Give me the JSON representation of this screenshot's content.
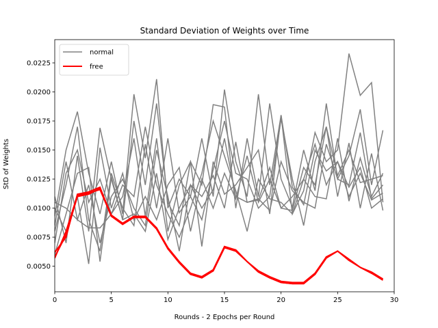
{
  "chart_data": {
    "type": "line",
    "title": "Standard Deviation of Weights over Time",
    "xlabel": "Rounds - 2 Epochs per Round",
    "ylabel": "StD of Weights",
    "xlim": [
      0,
      30
    ],
    "ylim": [
      0.0028,
      0.0245
    ],
    "xticks": [
      0,
      5,
      10,
      15,
      20,
      25,
      30
    ],
    "yticks": [
      0.005,
      0.0075,
      0.01,
      0.0125,
      0.015,
      0.0175,
      0.02,
      0.0225
    ],
    "ytick_labels": [
      "0.0050",
      "0.0075",
      "0.0100",
      "0.0125",
      "0.0150",
      "0.0175",
      "0.0200",
      "0.0225"
    ],
    "grid": false,
    "legend": {
      "position": "top-left",
      "entries": [
        {
          "label": "normal",
          "color": "#808080"
        },
        {
          "label": "free",
          "color": "#ff0000"
        }
      ]
    },
    "x": [
      0,
      1,
      2,
      3,
      4,
      5,
      6,
      7,
      8,
      9,
      10,
      11,
      12,
      13,
      14,
      15,
      16,
      17,
      18,
      19,
      20,
      21,
      22,
      23,
      24,
      25,
      26,
      27,
      28,
      29
    ],
    "series": [
      {
        "group": "normal",
        "color": "#808080",
        "values": [
          0.0093,
          0.015,
          0.0183,
          0.013,
          0.0095,
          0.014,
          0.0095,
          0.0198,
          0.0143,
          0.0211,
          0.01,
          0.0125,
          0.011,
          0.016,
          0.011,
          0.0202,
          0.014,
          0.011,
          0.0198,
          0.012,
          0.018,
          0.0095,
          0.0115,
          0.0165,
          0.014,
          0.015,
          0.0233,
          0.0197,
          0.0208,
          0.0105
        ]
      },
      {
        "group": "normal",
        "color": "#808080",
        "values": [
          0.011,
          0.007,
          0.0145,
          0.008,
          0.0169,
          0.0125,
          0.009,
          0.0175,
          0.012,
          0.019,
          0.0105,
          0.0085,
          0.014,
          0.012,
          0.0189,
          0.0187,
          0.01,
          0.016,
          0.011,
          0.019,
          0.0125,
          0.0101,
          0.015,
          0.0115,
          0.019,
          0.0125,
          0.0145,
          0.0185,
          0.012,
          0.0167
        ]
      },
      {
        "group": "normal",
        "color": "#808080",
        "values": [
          0.008,
          0.012,
          0.017,
          0.009,
          0.0063,
          0.013,
          0.01,
          0.0085,
          0.0155,
          0.01,
          0.016,
          0.0096,
          0.011,
          0.009,
          0.0133,
          0.0175,
          0.013,
          0.0125,
          0.01,
          0.011,
          0.0177,
          0.0125,
          0.0085,
          0.014,
          0.017,
          0.011,
          0.0156,
          0.01,
          0.0147,
          0.0098
        ]
      },
      {
        "group": "normal",
        "color": "#808080",
        "values": [
          0.0085,
          0.014,
          0.009,
          0.012,
          0.007,
          0.011,
          0.0125,
          0.01,
          0.0085,
          0.015,
          0.011,
          0.0063,
          0.012,
          0.01,
          0.0116,
          0.016,
          0.011,
          0.0105,
          0.0108,
          0.0098,
          0.014,
          0.0115,
          0.0105,
          0.01,
          0.0155,
          0.0125,
          0.012,
          0.0165,
          0.0108,
          0.012
        ]
      },
      {
        "group": "normal",
        "color": "#808080",
        "values": [
          0.007,
          0.013,
          0.015,
          0.0105,
          0.0125,
          0.0095,
          0.012,
          0.011,
          0.017,
          0.012,
          0.0095,
          0.0075,
          0.01,
          0.013,
          0.0175,
          0.0145,
          0.0115,
          0.008,
          0.0125,
          0.0108,
          0.0105,
          0.0095,
          0.0125,
          0.011,
          0.0108,
          0.016,
          0.0106,
          0.0143,
          0.011,
          0.013
        ]
      },
      {
        "group": "normal",
        "color": "#808080",
        "values": [
          0.01,
          0.008,
          0.011,
          0.0052,
          0.0152,
          0.01,
          0.013,
          0.009,
          0.011,
          0.009,
          0.012,
          0.0135,
          0.008,
          0.0125,
          0.01,
          0.013,
          0.0108,
          0.0145,
          0.0105,
          0.0125,
          0.01,
          0.011,
          0.0125,
          0.0155,
          0.012,
          0.014,
          0.0118,
          0.0135,
          0.01,
          0.0108
        ]
      },
      {
        "group": "normal",
        "color": "#808080",
        "values": [
          0.0105,
          0.01,
          0.009,
          0.0083,
          0.0083,
          0.0095,
          0.011,
          0.016,
          0.0093,
          0.016,
          0.008,
          0.012,
          0.014,
          0.0067,
          0.014,
          0.0112,
          0.012,
          0.0135,
          0.015,
          0.0095,
          0.018,
          0.0118,
          0.0103,
          0.015,
          0.0132,
          0.014,
          0.011,
          0.013,
          0.0107,
          0.0113
        ]
      },
      {
        "group": "normal",
        "color": "#808080",
        "values": [
          0.006,
          0.0095,
          0.013,
          0.0135,
          0.0054,
          0.0127,
          0.009,
          0.0095,
          0.008,
          0.013,
          0.0073,
          0.01,
          0.012,
          0.011,
          0.0128,
          0.01,
          0.0157,
          0.0105,
          0.0107,
          0.0135,
          0.01,
          0.0098,
          0.0135,
          0.012,
          0.017,
          0.0128,
          0.015,
          0.0122,
          0.0125,
          0.0128
        ]
      }
    ],
    "free_series": {
      "group": "free",
      "color": "#ff0000",
      "lines": [
        [
          0.0057,
          0.008,
          0.0111,
          0.0113,
          0.0116,
          0.0093,
          0.0086,
          0.0092,
          0.0092,
          0.0082,
          0.0065,
          0.0053,
          0.0043,
          0.004,
          0.0046,
          0.0066,
          0.0064,
          0.0054,
          0.0045,
          0.004,
          0.0036,
          0.0035,
          0.0035,
          0.0043,
          0.0058,
          0.0063,
          0.0055,
          0.0049,
          0.0044,
          0.0039
        ],
        [
          0.0058,
          0.0077,
          0.011,
          0.0112,
          0.0117,
          0.0094,
          0.0087,
          0.0093,
          0.0093,
          0.0083,
          0.0066,
          0.0054,
          0.0044,
          0.0041,
          0.0047,
          0.0067,
          0.0064,
          0.0054,
          0.0046,
          0.0041,
          0.0037,
          0.0036,
          0.0036,
          0.0044,
          0.0058,
          0.0063,
          0.0056,
          0.0049,
          0.0045,
          0.0039
        ],
        [
          0.0062,
          0.0075,
          0.0112,
          0.0114,
          0.0118,
          0.0093,
          0.0087,
          0.0092,
          0.0092,
          0.0083,
          0.0065,
          0.0053,
          0.0043,
          0.0041,
          0.0046,
          0.0066,
          0.0063,
          0.0054,
          0.0045,
          0.004,
          0.0036,
          0.0035,
          0.0035,
          0.0043,
          0.0057,
          0.0063,
          0.0056,
          0.0049,
          0.0044,
          0.0038
        ]
      ]
    }
  }
}
